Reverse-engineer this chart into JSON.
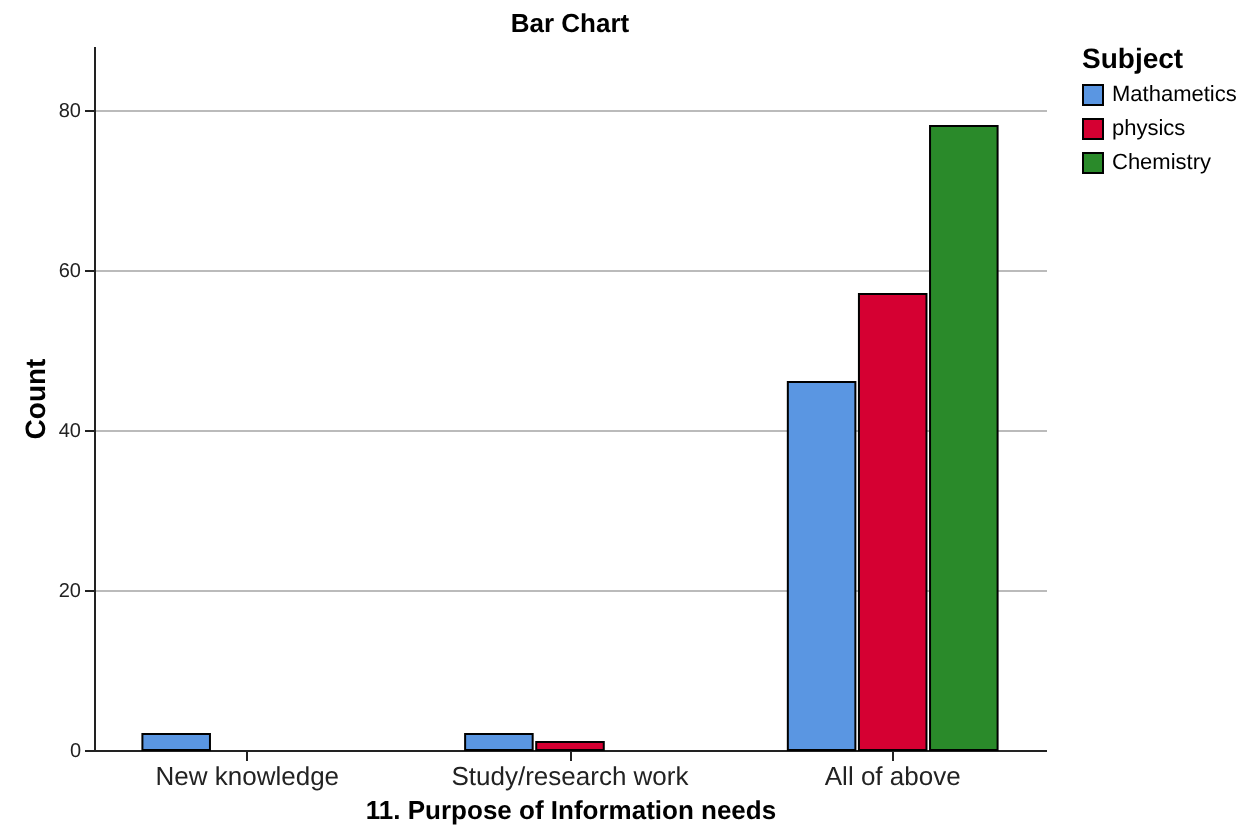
{
  "chart_data": {
    "type": "bar",
    "title": "Bar Chart",
    "xlabel": "11. Purpose of Information needs",
    "ylabel": "Count",
    "legend_title": "Subject",
    "categories": [
      "New knowledge",
      "Study/research work",
      "All of above"
    ],
    "series": [
      {
        "name": "Mathametics",
        "color": "#5a96e2",
        "values": [
          2,
          2,
          46
        ]
      },
      {
        "name": "physics",
        "color": "#d50032",
        "values": [
          null,
          1,
          57
        ]
      },
      {
        "name": "Chemistry",
        "color": "#2a8a2a",
        "values": [
          null,
          null,
          78
        ]
      }
    ],
    "ylim": [
      0,
      88
    ],
    "yticks": [
      0,
      20,
      40,
      60,
      80
    ],
    "grid": "y",
    "legend": "top right"
  }
}
